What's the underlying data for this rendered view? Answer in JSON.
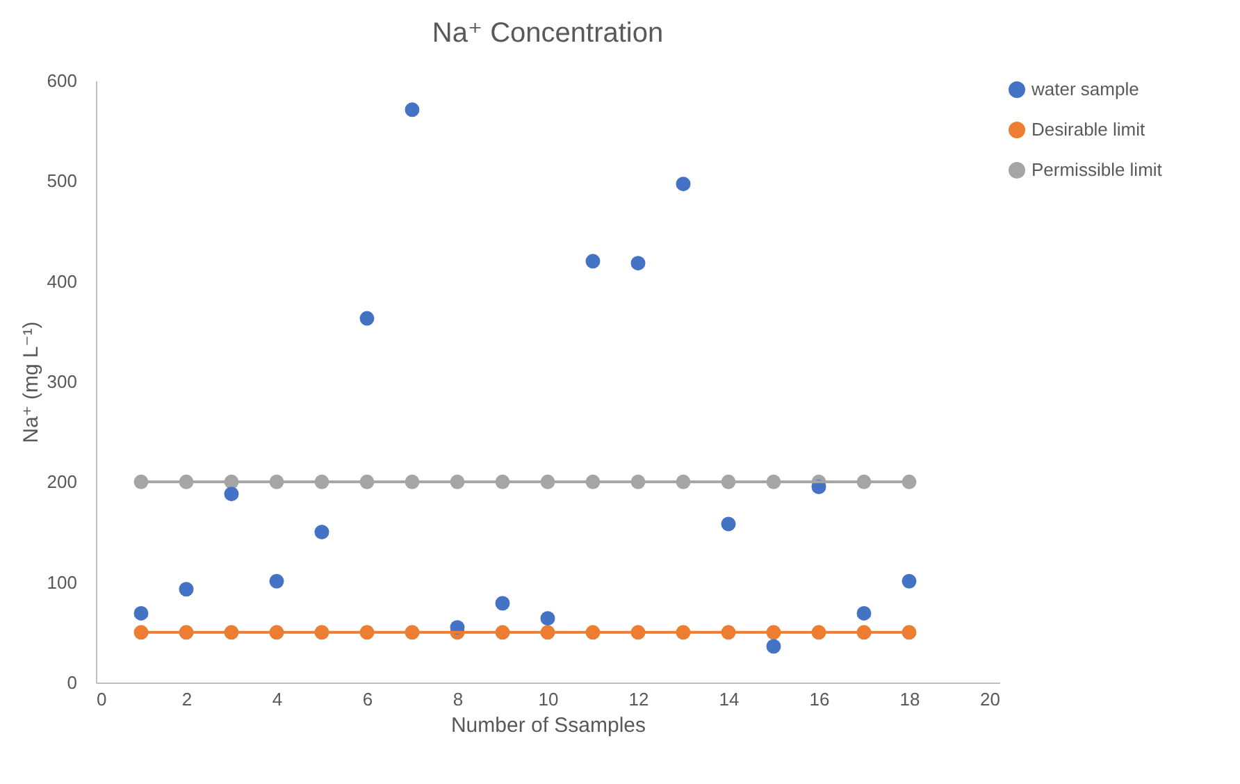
{
  "chart_data": {
    "type": "scatter",
    "title": "Na⁺ Concentration",
    "xlabel": "Number of Ssamples",
    "ylabel": "Na⁺ (mg L⁻¹)",
    "x": [
      1,
      2,
      3,
      4,
      5,
      6,
      7,
      8,
      9,
      10,
      11,
      12,
      13,
      14,
      15,
      16,
      17,
      18
    ],
    "series": [
      {
        "name": "water sample",
        "color": "#4472c4",
        "values": [
          69,
          93,
          188,
          101,
          150,
          363,
          571,
          55,
          79,
          64,
          420,
          418,
          497,
          158,
          36,
          195,
          69,
          101
        ]
      },
      {
        "name": "Desirable limit",
        "type": "line",
        "color": "#ed7d31",
        "values": [
          50,
          50,
          50,
          50,
          50,
          50,
          50,
          50,
          50,
          50,
          50,
          50,
          50,
          50,
          50,
          50,
          50,
          50
        ]
      },
      {
        "name": "Permissible limit",
        "type": "line",
        "color": "#a5a5a5",
        "values": [
          200,
          200,
          200,
          200,
          200,
          200,
          200,
          200,
          200,
          200,
          200,
          200,
          200,
          200,
          200,
          200,
          200,
          200
        ]
      }
    ],
    "xlim": [
      0,
      20
    ],
    "xticks": [
      0,
      2,
      4,
      6,
      8,
      10,
      12,
      14,
      16,
      18,
      20
    ],
    "ylim": [
      0,
      600
    ],
    "yticks": [
      0,
      100,
      200,
      300,
      400,
      500,
      600
    ],
    "grid": false,
    "legend": "top right",
    "marker": "circle",
    "line_style": "solid"
  }
}
